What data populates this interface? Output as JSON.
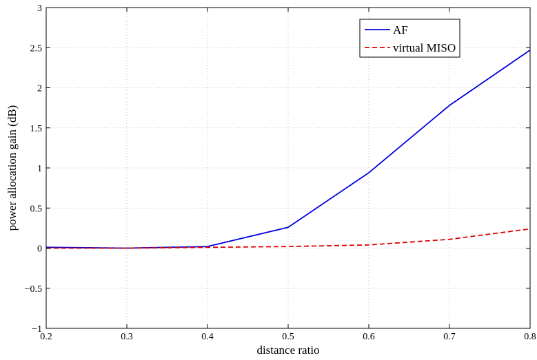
{
  "chart_data": {
    "type": "line",
    "xlabel": "distance ratio",
    "ylabel": "power allocation gain (dB)",
    "xlim": [
      0.2,
      0.8
    ],
    "ylim": [
      -1,
      3
    ],
    "xticks": [
      0.2,
      0.3,
      0.4,
      0.5,
      0.6,
      0.7,
      0.8
    ],
    "yticks": [
      -1,
      -0.5,
      0,
      0.5,
      1,
      1.5,
      2,
      2.5,
      3
    ],
    "xtick_labels": [
      "0.2",
      "0.3",
      "0.4",
      "0.5",
      "0.6",
      "0.7",
      "0.8"
    ],
    "ytick_labels": [
      "−1",
      "−0.5",
      "0",
      "0.5",
      "1",
      "1.5",
      "2",
      "2.5",
      "3"
    ],
    "grid": true,
    "legend_position": "top-right",
    "x": [
      0.2,
      0.3,
      0.4,
      0.5,
      0.6,
      0.7,
      0.8
    ],
    "series": [
      {
        "name": "AF",
        "color": "#0000dd",
        "style": "solid",
        "values": [
          0.01,
          0.0,
          0.02,
          0.26,
          0.94,
          1.78,
          2.47
        ]
      },
      {
        "name": "virtual MISO",
        "color": "#dd0000",
        "style": "dashed",
        "values": [
          0.0,
          0.0,
          0.01,
          0.02,
          0.04,
          0.11,
          0.24
        ]
      }
    ]
  }
}
